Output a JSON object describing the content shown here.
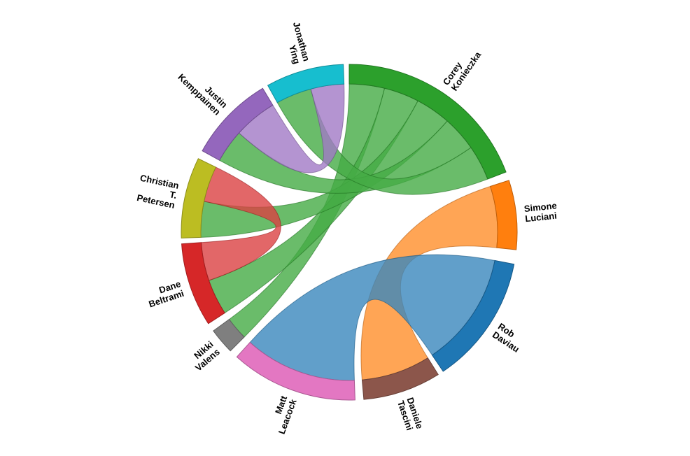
{
  "chart_data": {
    "type": "chord",
    "title": "",
    "layout": {
      "center": [
        499,
        332
      ],
      "outer_radius": 240,
      "inner_radius": 212
    },
    "groups": [
      {
        "name": "Corey Konieczka",
        "lines": [
          "Corey",
          "Konieczka"
        ],
        "color": "#2ca02c",
        "start_deg": 0,
        "end_deg": 69
      },
      {
        "name": "Simone Luciani",
        "lines": [
          "Simone",
          "Luciani"
        ],
        "color": "#ff7f0e",
        "start_deg": 72,
        "end_deg": 96
      },
      {
        "name": "Rob Daviau",
        "lines": [
          "Rob",
          "Daviau"
        ],
        "color": "#1f77b4",
        "start_deg": 101,
        "end_deg": 146
      },
      {
        "name": "Daniele Tascini",
        "lines": [
          "Daniele",
          "Tascini"
        ],
        "color": "#8c564b",
        "start_deg": 148,
        "end_deg": 175
      },
      {
        "name": "Matt Leacock",
        "lines": [
          "Matt",
          "Leacock"
        ],
        "color": "#e377c2",
        "start_deg": 178,
        "end_deg": 222
      },
      {
        "name": "Nikki Valens",
        "lines": [
          "Nikki",
          "Valens"
        ],
        "color": "#7f7f7f",
        "start_deg": 225,
        "end_deg": 234
      },
      {
        "name": "Dane Beltrami",
        "lines": [
          "Dane",
          "Beltrami"
        ],
        "color": "#d62728",
        "start_deg": 237,
        "end_deg": 266
      },
      {
        "name": "Christian T. Petersen",
        "lines": [
          "Christian",
          "T.",
          "Petersen"
        ],
        "color": "#bcbd22",
        "start_deg": 268,
        "end_deg": 296
      },
      {
        "name": "Justin Kemppainen",
        "lines": [
          "Justin",
          "Kemppainen"
        ],
        "color": "#9467bd",
        "start_deg": 299,
        "end_deg": 329
      },
      {
        "name": "Jonathan Ying",
        "lines": [
          "Jonathan",
          "Ying"
        ],
        "color": "#17becf",
        "start_deg": 331,
        "end_deg": 358
      }
    ],
    "ribbons": [
      {
        "source": "Corey Konieczka",
        "target": "Nikki Valens",
        "color": "#2ca02c",
        "s": [
          0,
          13.8
        ],
        "t": [
          225,
          234
        ]
      },
      {
        "source": "Corey Konieczka",
        "target": "Dane Beltrami",
        "color": "#2ca02c",
        "s": [
          13.8,
          27.6
        ],
        "t": [
          237,
          251
        ]
      },
      {
        "source": "Corey Konieczka",
        "target": "Christian T. Petersen",
        "color": "#2ca02c",
        "s": [
          27.6,
          41.4
        ],
        "t": [
          268,
          282
        ]
      },
      {
        "source": "Corey Konieczka",
        "target": "Justin Kemppainen",
        "color": "#2ca02c",
        "s": [
          41.4,
          55.2
        ],
        "t": [
          299,
          312
        ]
      },
      {
        "source": "Corey Konieczka",
        "target": "Jonathan Ying",
        "color": "#2ca02c",
        "s": [
          55.2,
          69
        ],
        "t": [
          331,
          345
        ]
      },
      {
        "source": "Justin Kemppainen",
        "target": "Jonathan Ying",
        "color": "#9467bd",
        "s": [
          312,
          329
        ],
        "t": [
          345,
          358
        ]
      },
      {
        "source": "Christian T. Petersen",
        "target": "Dane Beltrami",
        "color": "#d62728",
        "s": [
          282,
          296
        ],
        "t": [
          251,
          266
        ]
      },
      {
        "source": "Simone Luciani",
        "target": "Daniele Tascini",
        "color": "#ff7f0e",
        "s": [
          72,
          96
        ],
        "t": [
          148,
          175
        ]
      },
      {
        "source": "Rob Daviau",
        "target": "Matt Leacock",
        "color": "#1f77b4",
        "s": [
          101,
          146
        ],
        "t": [
          178,
          222
        ]
      }
    ]
  }
}
